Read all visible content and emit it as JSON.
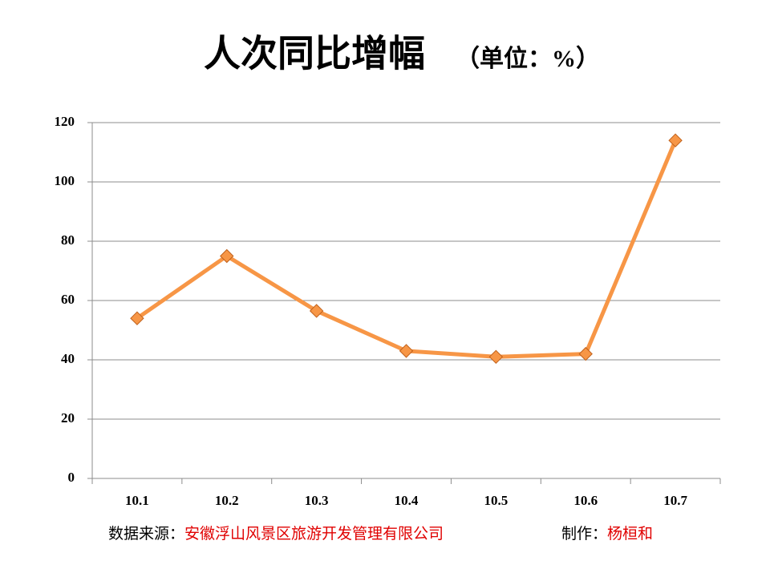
{
  "chart_data": {
    "type": "line",
    "title": "人次同比增幅",
    "unit": "（单位：%）",
    "categories": [
      "10.1",
      "10.2",
      "10.3",
      "10.4",
      "10.5",
      "10.6",
      "10.7"
    ],
    "values": [
      54,
      75,
      56.5,
      43,
      41,
      42,
      114
    ],
    "color": "#f79646",
    "ylim": [
      0,
      120
    ],
    "yticks": [
      0,
      20,
      40,
      60,
      80,
      100,
      120
    ],
    "grid": true,
    "source_label": "数据来源：",
    "source": "安徽浮山风景区旅游开发管理有限公司",
    "author_label": "制作：",
    "author": "杨桓和"
  }
}
